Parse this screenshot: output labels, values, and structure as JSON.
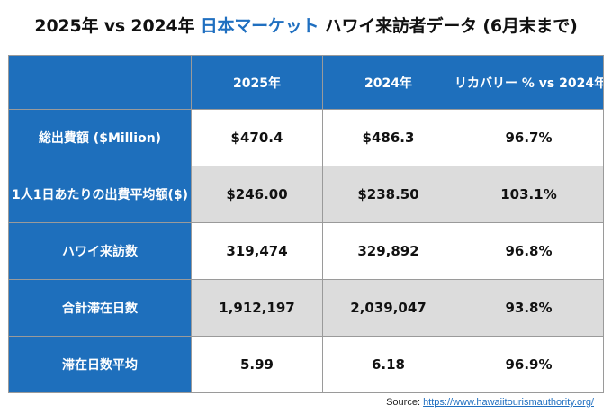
{
  "title": {
    "part1": "2025年 vs 2024年 ",
    "accent": "日本マーケット",
    "part2": " ハワイ来訪者データ (6月末まで)",
    "accent_color": "#1f6fc0"
  },
  "table": {
    "headers": [
      "",
      "2025年",
      "2024年",
      "リカバリー % vs 2024年"
    ],
    "rows": [
      {
        "label": "総出費額 ($Million)",
        "cells": [
          "$470.4",
          "$486.3",
          "96.7%"
        ]
      },
      {
        "label": "1人1日あたりの出費平均額($)",
        "cells": [
          "$246.00",
          "$238.50",
          "103.1%"
        ]
      },
      {
        "label": "ハワイ来訪数",
        "cells": [
          "319,474",
          "329,892",
          "96.8%"
        ]
      },
      {
        "label": "合計滞在日数",
        "cells": [
          "1,912,197",
          "2,039,047",
          "93.8%"
        ]
      },
      {
        "label": "滞在日数平均",
        "cells": [
          "5.99",
          "6.18",
          "96.9%"
        ]
      }
    ],
    "header_color": "#1e6fbc",
    "shade_color": "#dcdcdc"
  },
  "source": {
    "prefix": "Source: ",
    "link_text": "https://www.hawaiitourismauthority.org/"
  }
}
